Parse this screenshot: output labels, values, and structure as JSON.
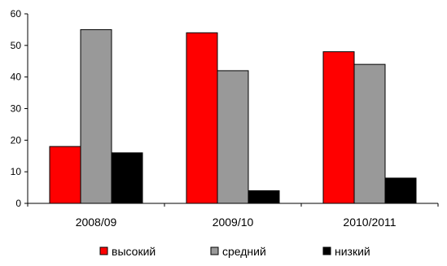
{
  "chart_data": {
    "type": "bar",
    "title": "",
    "xlabel": "",
    "ylabel": "",
    "categories": [
      "2008/09",
      "2009/10",
      "2010/2011"
    ],
    "series": [
      {
        "name": "высокий",
        "values": [
          18,
          54,
          48
        ],
        "color": "#ff0000"
      },
      {
        "name": "средний",
        "values": [
          55,
          42,
          44
        ],
        "color": "#999999"
      },
      {
        "name": "низкий",
        "values": [
          16,
          4,
          8
        ],
        "color": "#000000"
      }
    ],
    "ylim": [
      0,
      60
    ],
    "yticks": [
      "0",
      "10",
      "20",
      "30",
      "40",
      "50",
      "60"
    ],
    "grid": false,
    "legend_position": "bottom"
  }
}
